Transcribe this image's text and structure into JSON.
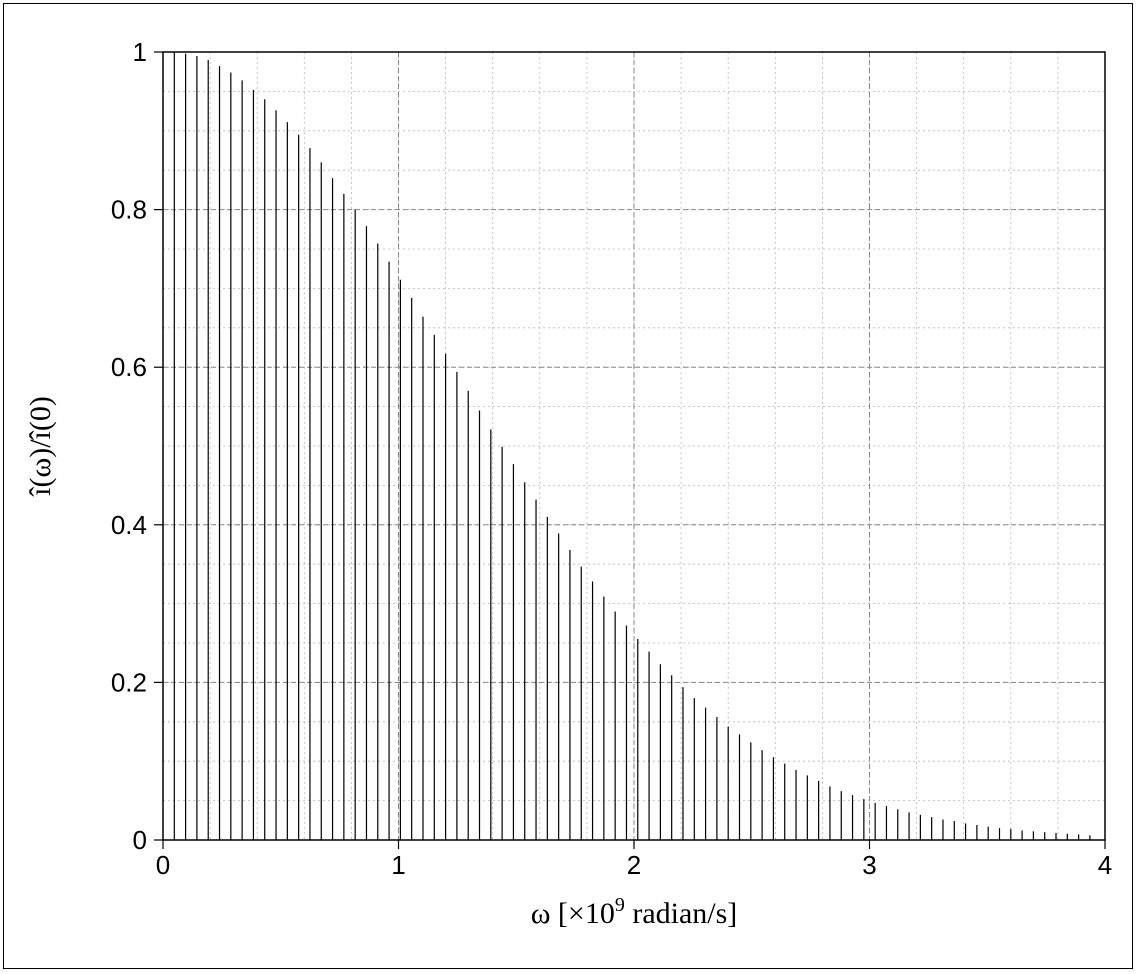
{
  "chart_data": {
    "type": "bar",
    "style": "stem",
    "xlabel_parts": {
      "prefix": "ω [×10",
      "superscript": "9",
      "suffix": " radian/s]"
    },
    "ylabel": "î(ω)/î(0)",
    "xlim": [
      0,
      4
    ],
    "ylim": [
      0,
      1
    ],
    "x_ticks": [
      "0",
      "1",
      "2",
      "3",
      "4"
    ],
    "y_ticks": [
      "0",
      "0.2",
      "0.4",
      "0.6",
      "0.8",
      "1"
    ],
    "x_tick_values": [
      0,
      1,
      2,
      3,
      4
    ],
    "y_tick_values": [
      0,
      0.2,
      0.4,
      0.6,
      0.8,
      1
    ],
    "grid": {
      "major": true,
      "minor": true
    },
    "x": [
      0.048,
      0.096,
      0.144,
      0.192,
      0.24,
      0.288,
      0.336,
      0.384,
      0.432,
      0.48,
      0.528,
      0.576,
      0.624,
      0.672,
      0.72,
      0.768,
      0.816,
      0.864,
      0.912,
      0.96,
      1.008,
      1.056,
      1.104,
      1.152,
      1.2,
      1.248,
      1.296,
      1.344,
      1.392,
      1.44,
      1.488,
      1.536,
      1.584,
      1.632,
      1.68,
      1.728,
      1.776,
      1.824,
      1.872,
      1.92,
      1.968,
      2.016,
      2.064,
      2.112,
      2.16,
      2.208,
      2.256,
      2.304,
      2.352,
      2.4,
      2.448,
      2.496,
      2.544,
      2.592,
      2.64,
      2.688,
      2.736,
      2.784,
      2.832,
      2.88,
      2.928,
      2.976,
      3.024,
      3.072,
      3.12,
      3.168,
      3.216,
      3.264,
      3.312,
      3.36,
      3.408,
      3.456,
      3.504,
      3.552,
      3.6,
      3.648,
      3.696,
      3.744,
      3.792,
      3.84,
      3.888,
      3.936
    ],
    "values": [
      1.0,
      0.998,
      0.995,
      0.99,
      0.982,
      0.974,
      0.964,
      0.952,
      0.94,
      0.926,
      0.911,
      0.895,
      0.878,
      0.86,
      0.84,
      0.82,
      0.8,
      0.779,
      0.757,
      0.734,
      0.711,
      0.688,
      0.664,
      0.641,
      0.617,
      0.594,
      0.57,
      0.545,
      0.521,
      0.499,
      0.477,
      0.454,
      0.432,
      0.41,
      0.389,
      0.368,
      0.347,
      0.328,
      0.309,
      0.29,
      0.272,
      0.255,
      0.239,
      0.223,
      0.209,
      0.194,
      0.18,
      0.168,
      0.156,
      0.144,
      0.134,
      0.124,
      0.114,
      0.105,
      0.097,
      0.089,
      0.082,
      0.075,
      0.068,
      0.062,
      0.057,
      0.052,
      0.047,
      0.043,
      0.039,
      0.035,
      0.032,
      0.029,
      0.026,
      0.024,
      0.021,
      0.019,
      0.017,
      0.015,
      0.014,
      0.012,
      0.011,
      0.01,
      0.009,
      0.008,
      0.007,
      0.006
    ]
  }
}
